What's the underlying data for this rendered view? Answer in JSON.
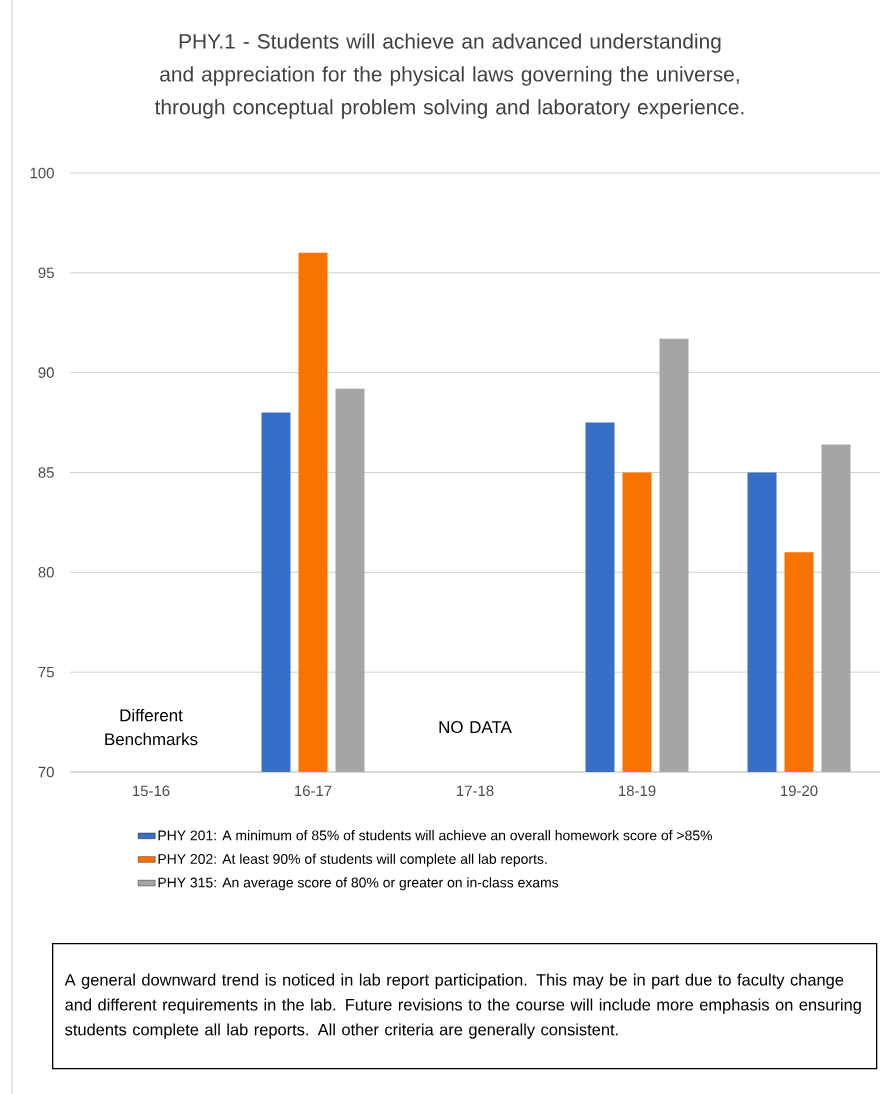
{
  "chart_data": {
    "type": "bar",
    "title": "PHY.1 - Students will achieve an advanced understanding and appreciation for the physical laws governing the universe, through conceptual problem solving and laboratory experience.",
    "categories": [
      "15-16",
      "16-17",
      "17-18",
      "18-19",
      "19-20"
    ],
    "series": [
      {
        "name": "PHY 201: A minimum of 85% of students will achieve an overall homework score of >85%",
        "color": "#366ec8",
        "values": [
          null,
          88,
          null,
          87.5,
          85
        ]
      },
      {
        "name": "PHY 202: At least 90% of students will complete all lab reports.",
        "color": "#fa7300",
        "values": [
          null,
          96,
          null,
          85,
          81
        ]
      },
      {
        "name": "PHY 315: An average score of 80% or greater on in-class exams",
        "color": "#a5a5a5",
        "values": [
          null,
          89.2,
          null,
          91.7,
          86.4
        ]
      }
    ],
    "ylim": [
      70,
      100
    ],
    "yticks": [
      70,
      75,
      80,
      85,
      90,
      95,
      100
    ],
    "grid": "y",
    "legend": "bottom",
    "annotations": [
      "Different Benchmarks",
      "NO DATA",
      "A general downward trend is noticed in lab report participation. This may be in part due to faculty change and different requirements in the lab. Future revisions to the course will include more emphasis on ensuring students complete all lab reports. All other criteria are generally consistent."
    ]
  }
}
